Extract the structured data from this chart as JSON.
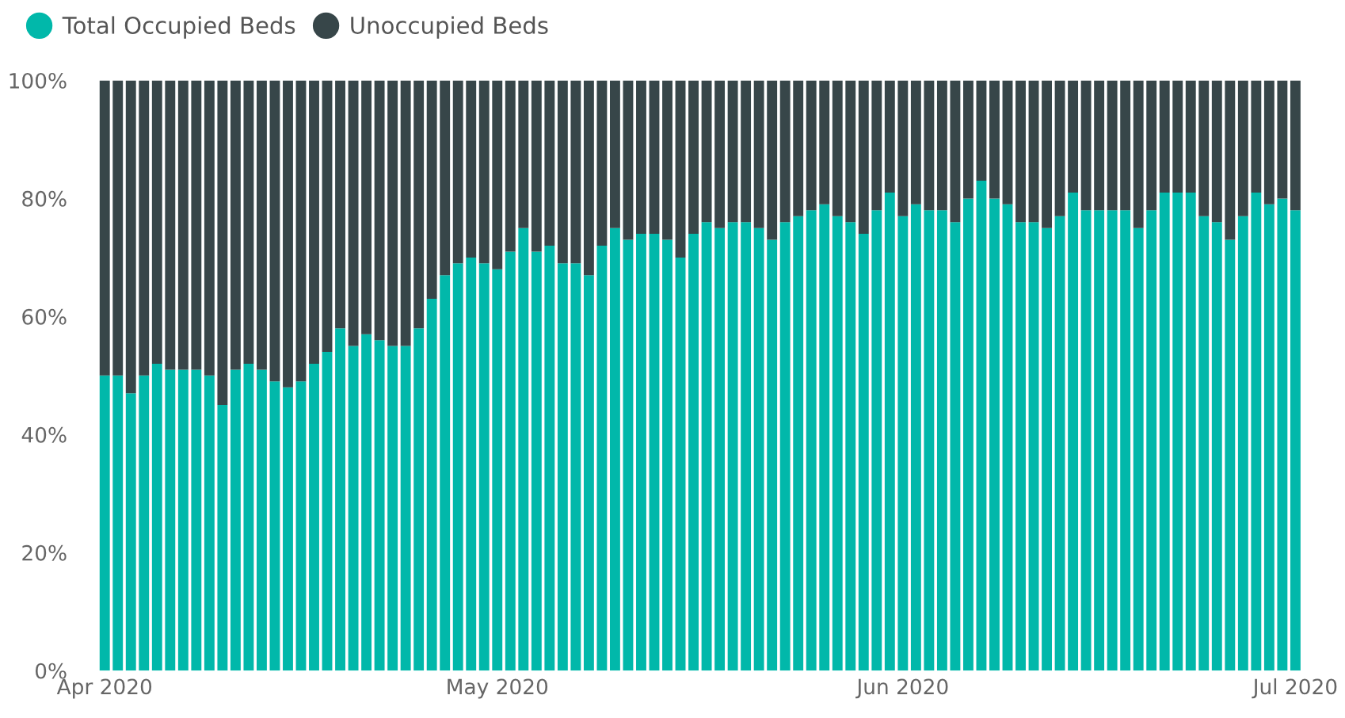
{
  "chart_data": {
    "type": "bar",
    "stacked": true,
    "legend": "top left",
    "grid": false,
    "x": [
      "2020-04-01",
      "2020-04-02",
      "2020-04-03",
      "2020-04-04",
      "2020-04-05",
      "2020-04-06",
      "2020-04-07",
      "2020-04-08",
      "2020-04-09",
      "2020-04-10",
      "2020-04-11",
      "2020-04-12",
      "2020-04-13",
      "2020-04-14",
      "2020-04-15",
      "2020-04-16",
      "2020-04-17",
      "2020-04-18",
      "2020-04-19",
      "2020-04-20",
      "2020-04-21",
      "2020-04-22",
      "2020-04-23",
      "2020-04-24",
      "2020-04-25",
      "2020-04-26",
      "2020-04-27",
      "2020-04-28",
      "2020-04-29",
      "2020-04-30",
      "2020-05-01",
      "2020-05-02",
      "2020-05-03",
      "2020-05-04",
      "2020-05-05",
      "2020-05-06",
      "2020-05-07",
      "2020-05-08",
      "2020-05-09",
      "2020-05-10",
      "2020-05-11",
      "2020-05-12",
      "2020-05-13",
      "2020-05-14",
      "2020-05-15",
      "2020-05-16",
      "2020-05-17",
      "2020-05-18",
      "2020-05-19",
      "2020-05-20",
      "2020-05-21",
      "2020-05-22",
      "2020-05-23",
      "2020-05-24",
      "2020-05-25",
      "2020-05-26",
      "2020-05-27",
      "2020-05-28",
      "2020-05-29",
      "2020-05-30",
      "2020-05-31",
      "2020-06-01",
      "2020-06-02",
      "2020-06-03",
      "2020-06-04",
      "2020-06-05",
      "2020-06-06",
      "2020-06-07",
      "2020-06-08",
      "2020-06-09",
      "2020-06-10",
      "2020-06-11",
      "2020-06-12",
      "2020-06-13",
      "2020-06-14",
      "2020-06-15",
      "2020-06-16",
      "2020-06-17",
      "2020-06-18",
      "2020-06-19",
      "2020-06-20",
      "2020-06-21",
      "2020-06-22",
      "2020-06-23",
      "2020-06-24",
      "2020-06-25",
      "2020-06-26",
      "2020-06-27",
      "2020-06-28",
      "2020-06-29",
      "2020-06-30",
      "2020-07-01"
    ],
    "series": [
      {
        "name": "Total Occupied Beds",
        "color": "#01b8aa",
        "values": [
          50,
          50,
          47,
          50,
          52,
          51,
          51,
          51,
          50,
          45,
          51,
          52,
          51,
          49,
          48,
          49,
          52,
          54,
          58,
          55,
          57,
          56,
          55,
          55,
          58,
          63,
          67,
          69,
          70,
          69,
          68,
          71,
          75,
          71,
          72,
          69,
          69,
          67,
          72,
          75,
          73,
          74,
          74,
          73,
          70,
          74,
          76,
          75,
          76,
          76,
          75,
          73,
          76,
          77,
          78,
          79,
          77,
          76,
          74,
          78,
          81,
          77,
          79,
          78,
          78,
          76,
          80,
          83,
          80,
          79,
          76,
          76,
          75,
          77,
          81,
          78,
          78,
          78,
          78,
          75,
          78,
          81,
          81,
          81,
          77,
          76,
          73,
          77,
          81,
          79,
          80,
          78
        ]
      },
      {
        "name": "Unoccupied Beds",
        "color": "#374649",
        "values": [
          50,
          50,
          53,
          50,
          48,
          49,
          49,
          49,
          50,
          55,
          49,
          48,
          49,
          51,
          52,
          51,
          48,
          46,
          42,
          45,
          43,
          44,
          45,
          45,
          42,
          37,
          33,
          31,
          30,
          31,
          32,
          29,
          25,
          29,
          28,
          31,
          31,
          33,
          28,
          25,
          27,
          26,
          26,
          27,
          30,
          26,
          24,
          25,
          24,
          24,
          25,
          27,
          24,
          23,
          22,
          21,
          23,
          24,
          26,
          22,
          19,
          23,
          21,
          22,
          22,
          24,
          20,
          17,
          20,
          21,
          24,
          24,
          25,
          23,
          19,
          22,
          22,
          22,
          22,
          25,
          22,
          19,
          19,
          19,
          23,
          24,
          27,
          23,
          19,
          21,
          20,
          22
        ]
      }
    ],
    "xlim": [
      "2020-03-31T12:00",
      "2020-07-01T12:00"
    ],
    "xticks": [
      {
        "value": "2020-04-01",
        "label": "Apr 2020"
      },
      {
        "value": "2020-05-01",
        "label": "May 2020"
      },
      {
        "value": "2020-06-01",
        "label": "Jun 2020"
      },
      {
        "value": "2020-07-01",
        "label": "Jul 2020"
      }
    ],
    "ylim": [
      0,
      100
    ],
    "yticks": [
      {
        "value": 0,
        "label": "0%"
      },
      {
        "value": 20,
        "label": "20%"
      },
      {
        "value": 40,
        "label": "40%"
      },
      {
        "value": 60,
        "label": "60%"
      },
      {
        "value": 80,
        "label": "80%"
      },
      {
        "value": 100,
        "label": "100%"
      }
    ]
  }
}
